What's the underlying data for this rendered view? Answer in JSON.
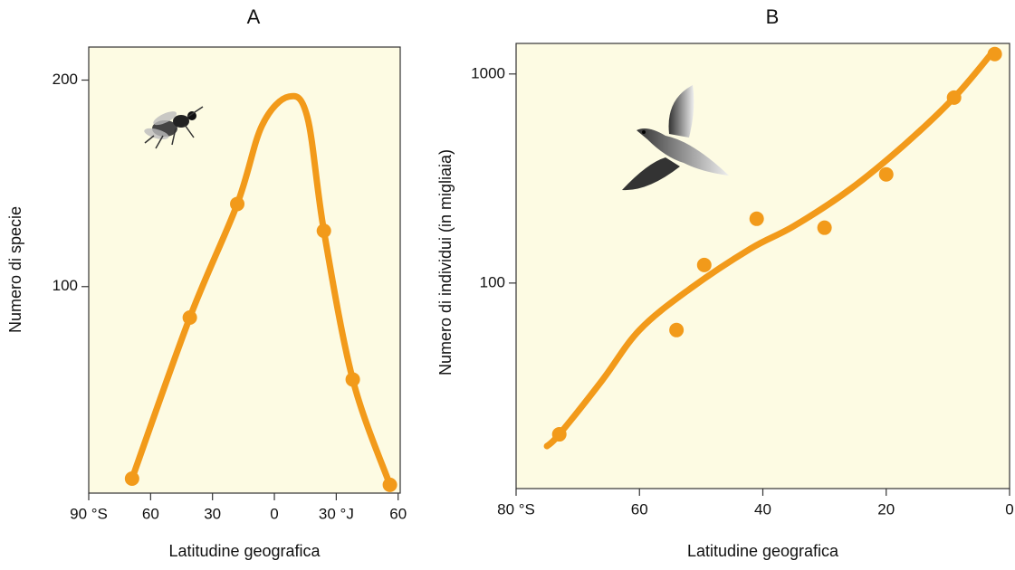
{
  "chart_data": [
    {
      "type": "scatter",
      "title": "A",
      "xlabel": "Latitudine geografica",
      "ylabel": "Numero di specie",
      "x": [
        -69,
        -41,
        -18,
        24,
        38,
        56
      ],
      "values": [
        7,
        85,
        140,
        127,
        55,
        4
      ],
      "trend": {
        "x": [
          -69,
          -41,
          -18,
          -6,
          7,
          16,
          24,
          38,
          56
        ],
        "values": [
          7,
          85,
          140,
          178,
          192,
          182,
          127,
          55,
          4
        ]
      },
      "color": "#f29a1a",
      "background": "#fdfbe3",
      "log_y": false,
      "xlim": [
        -90,
        61
      ],
      "ylim": [
        0,
        216
      ],
      "xticks": [
        {
          "value": -90,
          "label": "90 °S"
        },
        {
          "value": -60,
          "label": "60"
        },
        {
          "value": -30,
          "label": "30"
        },
        0,
        {
          "value": 30,
          "label": "30 °J"
        },
        60
      ],
      "yticks": [
        100,
        200
      ]
    },
    {
      "type": "scatter",
      "title": "B",
      "xlabel": "Latitudine geografica",
      "ylabel": "Numero di individui (in migliaia)",
      "x": [
        73,
        54,
        49.5,
        41,
        30,
        20,
        9,
        2.4
      ],
      "values": [
        18.9,
        59.6,
        122,
        203,
        184,
        331,
        771,
        1245
      ],
      "trend": {
        "x": [
          75,
          73,
          66,
          60,
          52,
          42,
          35,
          26,
          17,
          9,
          3
        ],
        "values": [
          16.6,
          18.9,
          34.4,
          59.6,
          93,
          146,
          187,
          279,
          460,
          771,
          1245
        ]
      },
      "color": "#f29a1a",
      "background": "#fdfbe3",
      "log_y": true,
      "xlim": [
        80,
        0
      ],
      "ylim": [
        10.4,
        1400
      ],
      "xticks": [
        {
          "value": 80,
          "label": "80 °S"
        },
        60,
        40,
        20,
        0
      ],
      "yticks": [
        100,
        1000
      ]
    }
  ]
}
